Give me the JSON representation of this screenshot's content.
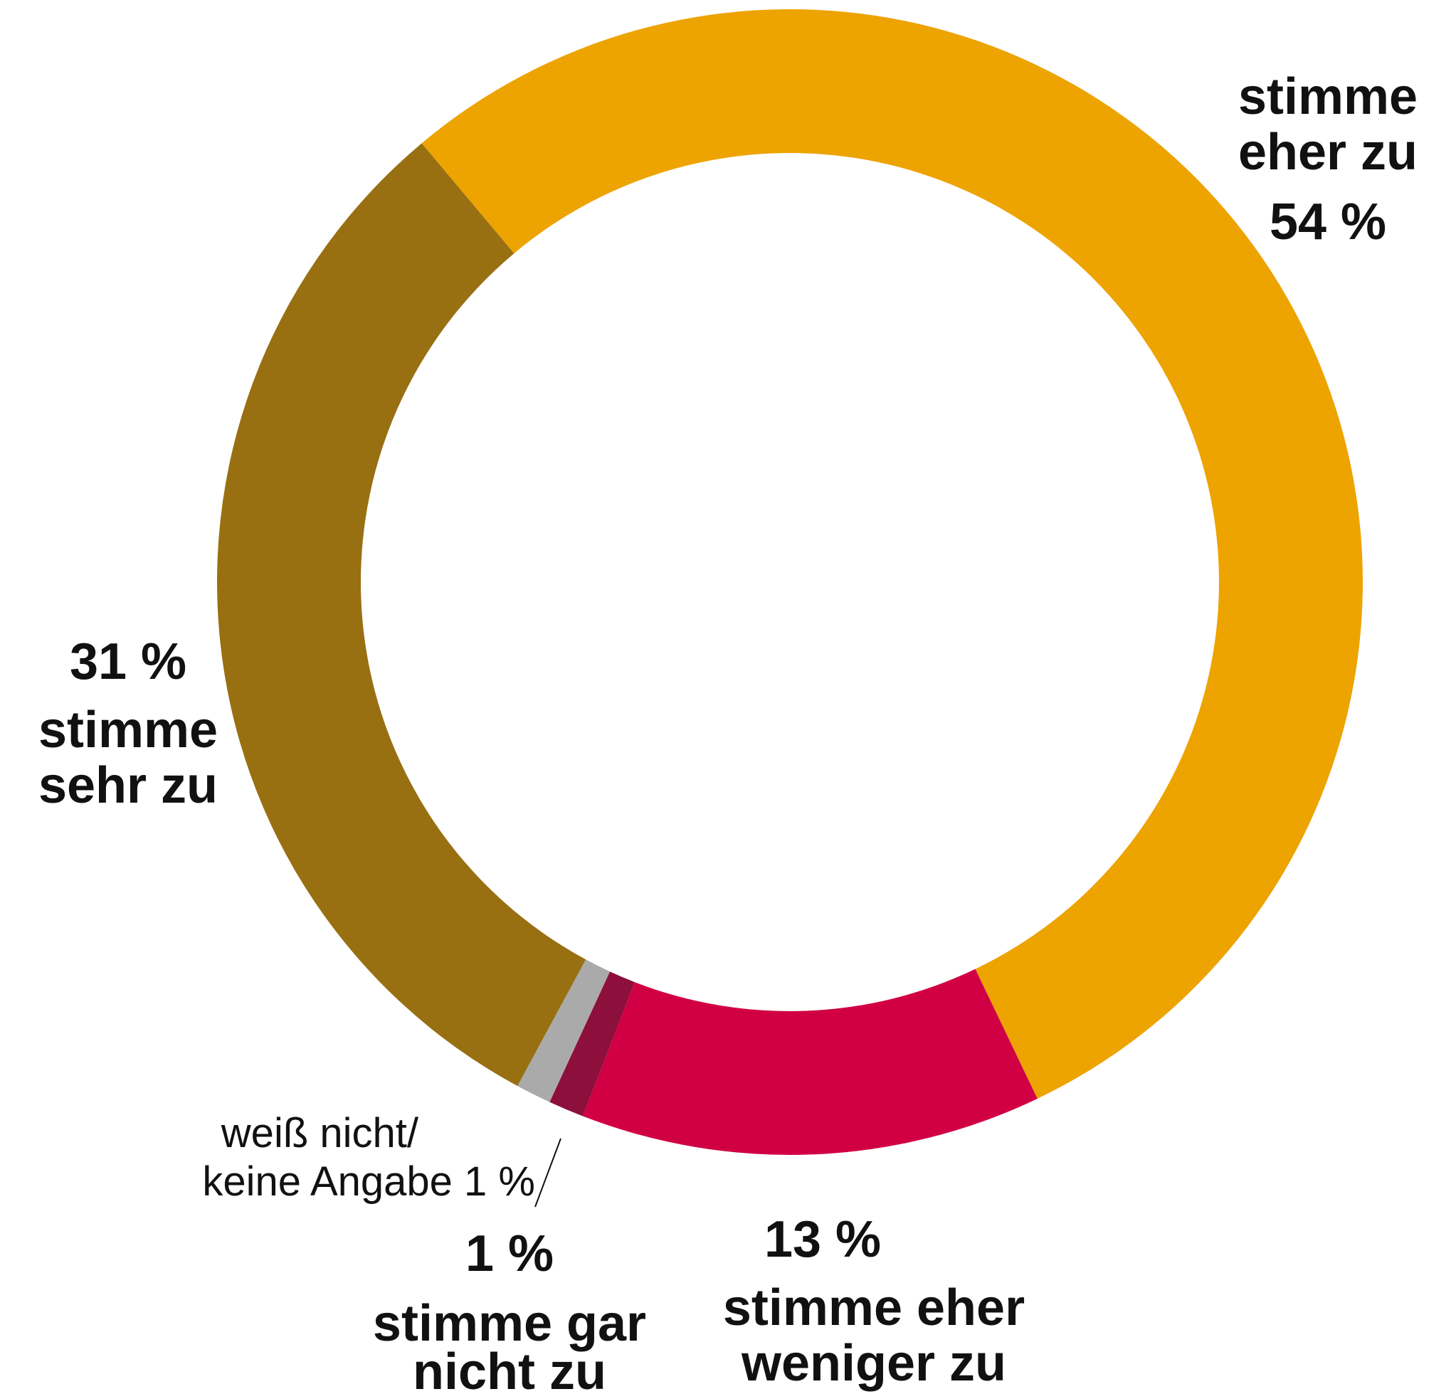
{
  "chart_data": {
    "type": "pie",
    "donut": true,
    "legend": "none",
    "slices": [
      {
        "key": "eher",
        "label_lines": [
          "stimme",
          "eher zu"
        ],
        "value_label": "54 %",
        "value": 54,
        "color": "#EDA300"
      },
      {
        "key": "weniger",
        "label_lines": [
          "stimme eher",
          "weniger zu"
        ],
        "value_label": "13 %",
        "value": 13,
        "color": "#D10044"
      },
      {
        "key": "gar",
        "label_lines": [
          "stimme gar",
          "nicht zu"
        ],
        "value_label": "1 %",
        "value": 1,
        "color": "#8C0F3C"
      },
      {
        "key": "wn",
        "label_lines": [
          "weiß nicht/",
          "keine Angabe 1 %"
        ],
        "value_label": "",
        "value": 1,
        "color": "#AAAAAA"
      },
      {
        "key": "sehr",
        "label_lines": [
          "stimme",
          "sehr zu"
        ],
        "value_label": "31 %",
        "value": 31,
        "color": "#987012"
      }
    ]
  }
}
